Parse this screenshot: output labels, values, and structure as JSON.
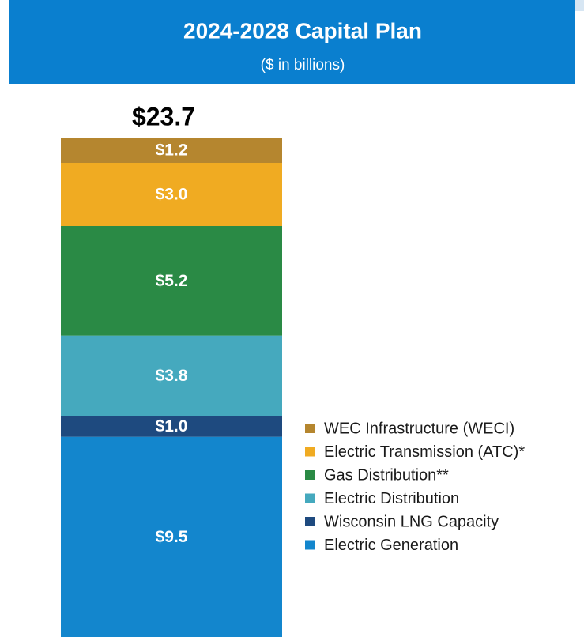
{
  "chart_data": {
    "type": "stacked_bar",
    "title": "2024-2028 Capital Plan",
    "subtitle": "($ in billions)",
    "total": 23.7,
    "total_label": "$23.7",
    "series": [
      {
        "name": "Electric Generation",
        "color": "#1386cd",
        "values": [
          9.5
        ],
        "value_labels": [
          "$9.5"
        ]
      },
      {
        "name": "Wisconsin LNG Capacity",
        "color": "#1e4a7f",
        "values": [
          1.0
        ],
        "value_labels": [
          "$1.0"
        ]
      },
      {
        "name": "Electric Distribution",
        "color": "#45a9be",
        "values": [
          3.8
        ],
        "value_labels": [
          "$3.8"
        ]
      },
      {
        "name": "Gas Distribution**",
        "color": "#2a8a45",
        "values": [
          5.2
        ],
        "value_labels": [
          "$5.2"
        ]
      },
      {
        "name": "Electric Transmission (ATC)*",
        "color": "#f0ab22",
        "values": [
          3.0
        ],
        "value_labels": [
          "$3.0"
        ]
      },
      {
        "name": "WEC Infrastructure (WECI)",
        "color": "#b5862f",
        "values": [
          1.2
        ],
        "value_labels": [
          "$1.2"
        ]
      }
    ]
  }
}
